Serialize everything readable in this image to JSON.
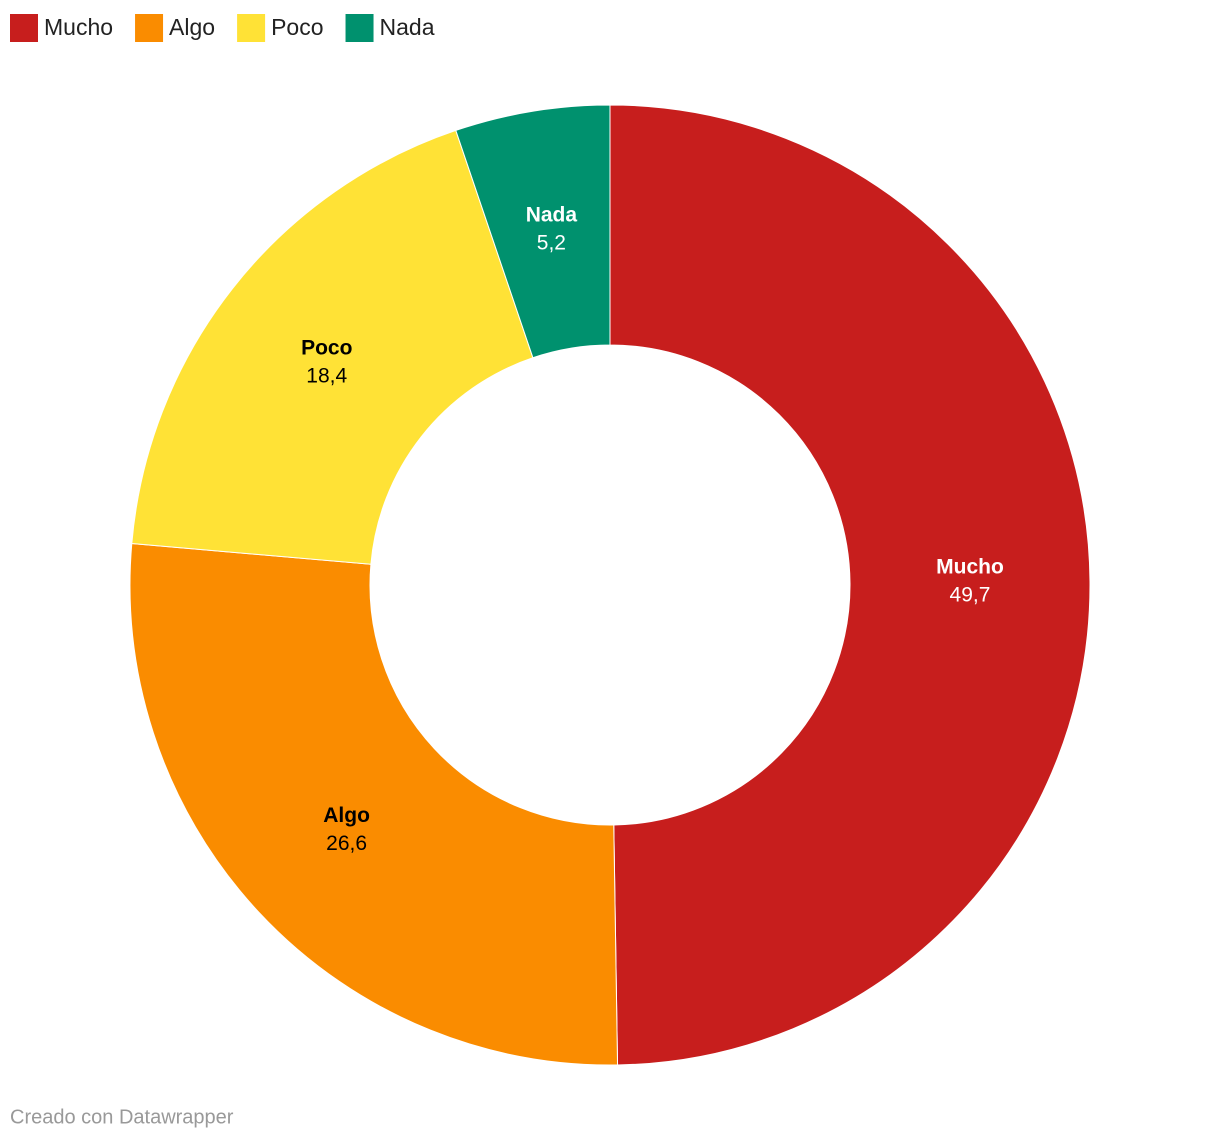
{
  "chart_data": {
    "type": "donut",
    "categories": [
      "Mucho",
      "Algo",
      "Poco",
      "Nada"
    ],
    "values": [
      49.7,
      26.6,
      18.4,
      5.2
    ],
    "value_labels": [
      "49,7",
      "26,6",
      "18,4",
      "5,2"
    ],
    "colors": [
      "#c71e1d",
      "#fa8c00",
      "#ffe236",
      "#00916e"
    ],
    "legend": "top-left",
    "source": "Creado con Datawrapper"
  }
}
